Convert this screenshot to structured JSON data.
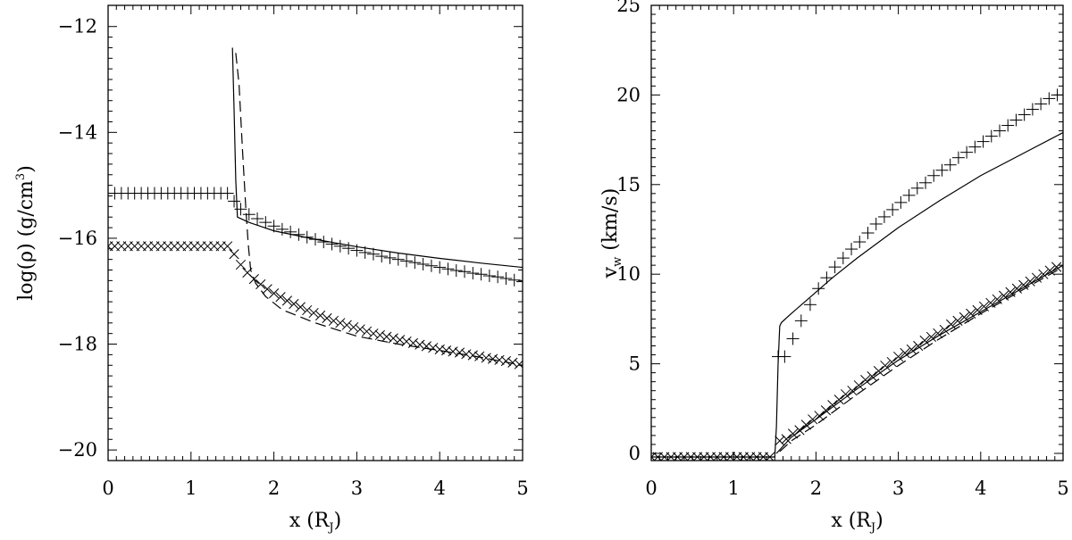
{
  "chart_data": [
    {
      "type": "line",
      "xlabel": "x (R_J)",
      "ylabel": "log(ρ) (g/cm³)",
      "xlim": [
        0,
        5
      ],
      "ylim": [
        -20.2,
        -11.6
      ],
      "xticks": [
        "0",
        "1",
        "2",
        "3",
        "4",
        "5"
      ],
      "yticks": [
        "−12",
        "−14",
        "−16",
        "−18",
        "−20"
      ],
      "ytick_values": [
        -12,
        -14,
        -16,
        -18,
        -20
      ],
      "grid": false,
      "series": [
        {
          "style": "solid",
          "x": [
            1.5,
            1.52,
            1.54,
            1.56,
            1.7,
            2.0,
            2.5,
            3.0,
            3.5,
            4.0,
            4.5,
            5.0
          ],
          "y": [
            -12.4,
            -13.6,
            -14.9,
            -15.6,
            -15.7,
            -15.86,
            -16.02,
            -16.16,
            -16.28,
            -16.38,
            -16.47,
            -16.55
          ]
        },
        {
          "style": "dashed",
          "x": [
            1.54,
            1.58,
            1.62,
            1.66,
            1.69,
            1.72,
            1.78,
            1.9,
            2.1,
            2.5,
            3.0,
            3.5,
            4.0,
            4.5,
            5.0
          ],
          "y": [
            -12.5,
            -13.1,
            -14.3,
            -15.4,
            -16.1,
            -16.6,
            -16.85,
            -17.1,
            -17.35,
            -17.6,
            -17.85,
            -18.0,
            -18.12,
            -18.25,
            -18.4
          ]
        },
        {
          "marker": "plus",
          "x": [
            0.0,
            0.08,
            0.16,
            0.24,
            0.32,
            0.4,
            0.48,
            0.56,
            0.64,
            0.72,
            0.8,
            0.88,
            0.96,
            1.04,
            1.12,
            1.2,
            1.28,
            1.36,
            1.44,
            1.52,
            1.6,
            1.7,
            1.8,
            1.9,
            2.0,
            2.1,
            2.2,
            2.3,
            2.4,
            2.5,
            2.6,
            2.7,
            2.8,
            2.9,
            3.0,
            3.1,
            3.2,
            3.3,
            3.4,
            3.5,
            3.6,
            3.7,
            3.8,
            3.9,
            4.0,
            4.1,
            4.2,
            4.3,
            4.4,
            4.5,
            4.6,
            4.7,
            4.8,
            4.9,
            5.0
          ],
          "y": [
            -15.15,
            -15.15,
            -15.15,
            -15.15,
            -15.15,
            -15.15,
            -15.15,
            -15.15,
            -15.15,
            -15.15,
            -15.15,
            -15.15,
            -15.15,
            -15.15,
            -15.15,
            -15.15,
            -15.15,
            -15.15,
            -15.15,
            -15.3,
            -15.45,
            -15.55,
            -15.63,
            -15.7,
            -15.77,
            -15.83,
            -15.88,
            -15.93,
            -15.98,
            -16.02,
            -16.07,
            -16.11,
            -16.15,
            -16.19,
            -16.23,
            -16.27,
            -16.3,
            -16.34,
            -16.37,
            -16.4,
            -16.43,
            -16.46,
            -16.49,
            -16.52,
            -16.55,
            -16.58,
            -16.61,
            -16.63,
            -16.66,
            -16.68,
            -16.71,
            -16.73,
            -16.76,
            -16.79,
            -16.82
          ]
        },
        {
          "marker": "cross",
          "x": [
            0.0,
            0.08,
            0.16,
            0.24,
            0.32,
            0.4,
            0.48,
            0.56,
            0.64,
            0.72,
            0.8,
            0.88,
            0.96,
            1.04,
            1.12,
            1.2,
            1.28,
            1.36,
            1.44,
            1.52,
            1.6,
            1.68,
            1.76,
            1.84,
            1.92,
            2.0,
            2.08,
            2.16,
            2.24,
            2.32,
            2.4,
            2.48,
            2.56,
            2.64,
            2.72,
            2.8,
            2.88,
            2.96,
            3.04,
            3.12,
            3.2,
            3.28,
            3.36,
            3.44,
            3.52,
            3.6,
            3.68,
            3.76,
            3.84,
            3.92,
            4.0,
            4.08,
            4.16,
            4.24,
            4.32,
            4.4,
            4.48,
            4.56,
            4.64,
            4.72,
            4.8,
            4.88,
            4.96
          ],
          "y": [
            -16.15,
            -16.15,
            -16.15,
            -16.15,
            -16.15,
            -16.15,
            -16.15,
            -16.15,
            -16.15,
            -16.15,
            -16.15,
            -16.15,
            -16.15,
            -16.15,
            -16.15,
            -16.15,
            -16.15,
            -16.15,
            -16.15,
            -16.3,
            -16.5,
            -16.65,
            -16.77,
            -16.87,
            -16.96,
            -17.04,
            -17.11,
            -17.18,
            -17.24,
            -17.3,
            -17.36,
            -17.41,
            -17.46,
            -17.51,
            -17.56,
            -17.6,
            -17.64,
            -17.68,
            -17.72,
            -17.76,
            -17.8,
            -17.83,
            -17.86,
            -17.89,
            -17.92,
            -17.95,
            -17.98,
            -18.01,
            -18.04,
            -18.07,
            -18.1,
            -18.12,
            -18.14,
            -18.16,
            -18.19,
            -18.21,
            -18.23,
            -18.26,
            -18.28,
            -18.3,
            -18.32,
            -18.35,
            -18.38
          ]
        }
      ]
    },
    {
      "type": "line",
      "xlabel": "x (R_J)",
      "ylabel": "v_w (km/s)",
      "xlim": [
        0,
        5
      ],
      "ylim": [
        -0.4,
        25
      ],
      "xticks": [
        "0",
        "1",
        "2",
        "3",
        "4",
        "5"
      ],
      "yticks": [
        "0",
        "5",
        "10",
        "15",
        "20",
        "25"
      ],
      "ytick_values": [
        0,
        5,
        10,
        15,
        20,
        25
      ],
      "grid": false,
      "series": [
        {
          "style": "solid",
          "x": [
            0.0,
            1.5,
            1.52,
            1.54,
            1.56,
            1.58,
            1.7,
            1.9,
            2.2,
            2.5,
            3.0,
            3.5,
            4.0,
            4.5,
            5.0
          ],
          "y": [
            -0.2,
            -0.2,
            1.5,
            5.0,
            7.1,
            7.3,
            7.8,
            8.6,
            9.8,
            10.9,
            12.6,
            14.1,
            15.5,
            16.7,
            17.9
          ]
        },
        {
          "style": "solid",
          "x": [
            1.52,
            1.7,
            2.0,
            2.5,
            3.0,
            3.5,
            4.0,
            4.5,
            5.0
          ],
          "y": [
            0.0,
            0.9,
            1.9,
            3.6,
            5.2,
            6.6,
            7.9,
            9.2,
            10.5
          ]
        },
        {
          "style": "dashed",
          "x": [
            1.56,
            1.7,
            2.0,
            2.5,
            3.0,
            3.5,
            4.0,
            4.5,
            5.0
          ],
          "y": [
            0.1,
            0.7,
            1.6,
            3.3,
            4.9,
            6.4,
            7.8,
            9.1,
            10.4
          ]
        },
        {
          "marker": "plus",
          "x": [
            1.54,
            1.62,
            1.72,
            1.82,
            1.93,
            2.03,
            2.13,
            2.23,
            2.33,
            2.43,
            2.53,
            2.63,
            2.73,
            2.83,
            2.93,
            3.03,
            3.13,
            3.23,
            3.33,
            3.43,
            3.53,
            3.63,
            3.73,
            3.83,
            3.93,
            4.03,
            4.13,
            4.23,
            4.33,
            4.43,
            4.53,
            4.63,
            4.73,
            4.83,
            4.93
          ],
          "y": [
            5.4,
            5.4,
            6.4,
            7.4,
            8.3,
            9.2,
            9.8,
            10.4,
            10.9,
            11.4,
            11.8,
            12.3,
            12.8,
            13.2,
            13.6,
            14.0,
            14.4,
            14.8,
            15.1,
            15.5,
            15.8,
            16.1,
            16.5,
            16.8,
            17.1,
            17.4,
            17.7,
            18.0,
            18.3,
            18.6,
            18.9,
            19.2,
            19.5,
            19.8,
            20.0
          ]
        },
        {
          "marker": "cross",
          "x": [
            0.0,
            0.08,
            0.16,
            0.24,
            0.32,
            0.4,
            0.48,
            0.56,
            0.64,
            0.72,
            0.8,
            0.88,
            0.96,
            1.04,
            1.12,
            1.2,
            1.28,
            1.36,
            1.44,
            1.56,
            1.64,
            1.72,
            1.8,
            1.88,
            1.96,
            2.04,
            2.12,
            2.2,
            2.28,
            2.36,
            2.44,
            2.52,
            2.6,
            2.68,
            2.76,
            2.84,
            2.92,
            3.0,
            3.08,
            3.16,
            3.24,
            3.32,
            3.4,
            3.48,
            3.56,
            3.64,
            3.72,
            3.8,
            3.88,
            3.96,
            4.04,
            4.12,
            4.2,
            4.28,
            4.36,
            4.44,
            4.52,
            4.6,
            4.68,
            4.76,
            4.84,
            4.92
          ],
          "y": [
            -0.2,
            -0.2,
            -0.2,
            -0.2,
            -0.2,
            -0.2,
            -0.2,
            -0.2,
            -0.2,
            -0.2,
            -0.2,
            -0.2,
            -0.2,
            -0.2,
            -0.2,
            -0.2,
            -0.2,
            -0.2,
            -0.2,
            0.7,
            0.8,
            1.1,
            1.3,
            1.6,
            1.9,
            2.1,
            2.4,
            2.7,
            3.0,
            3.3,
            3.5,
            3.8,
            4.1,
            4.3,
            4.6,
            4.9,
            5.1,
            5.4,
            5.6,
            5.8,
            6.0,
            6.3,
            6.5,
            6.7,
            6.9,
            7.2,
            7.4,
            7.6,
            7.8,
            8.0,
            8.2,
            8.4,
            8.6,
            8.8,
            9.0,
            9.2,
            9.4,
            9.6,
            9.8,
            10.0,
            10.2,
            10.4
          ]
        }
      ]
    }
  ]
}
